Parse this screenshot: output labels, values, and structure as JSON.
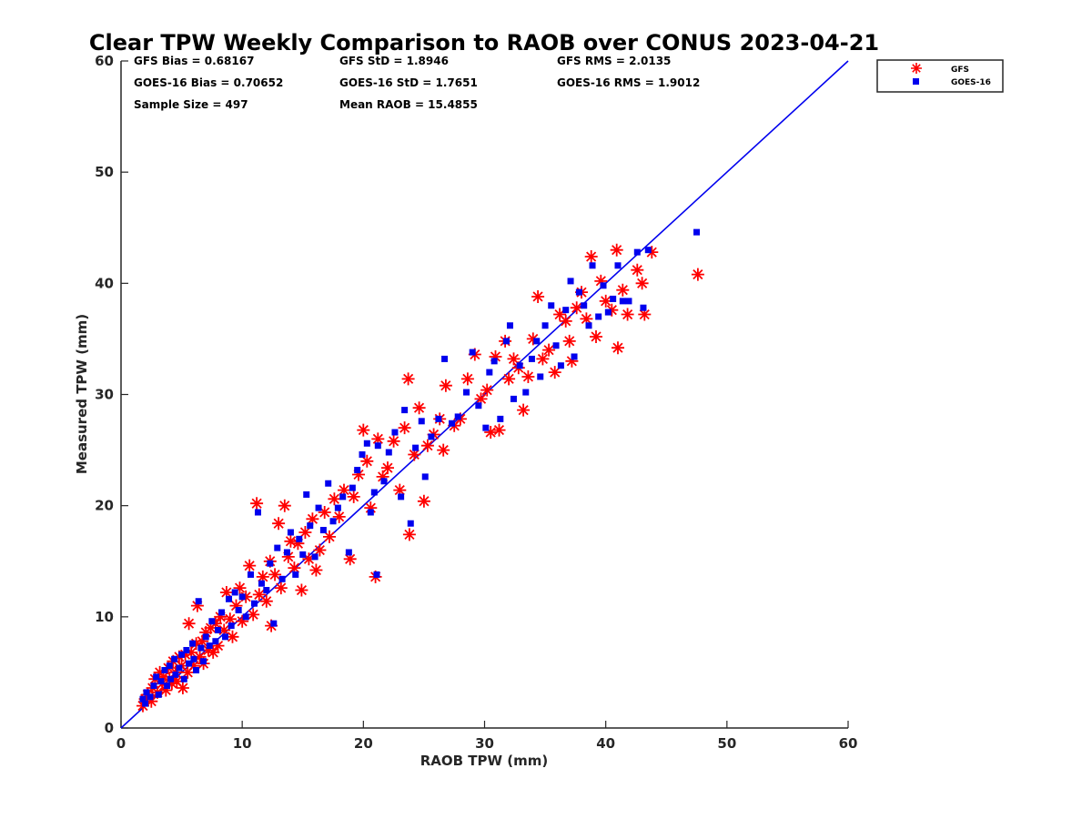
{
  "chart_data": {
    "type": "scatter",
    "title": "Clear TPW Weekly Comparison to RAOB over CONUS 2023-04-21",
    "xlabel": "RAOB TPW (mm)",
    "ylabel": "Measured TPW (mm)",
    "xlim": [
      0,
      60
    ],
    "ylim": [
      0,
      60
    ],
    "x_ticks": [
      "0",
      "10",
      "20",
      "30",
      "40",
      "50",
      "60"
    ],
    "y_ticks": [
      "0",
      "10",
      "20",
      "30",
      "40",
      "50",
      "60"
    ],
    "grid": false,
    "legend_position": "top-right",
    "reference_line": {
      "name": "1:1",
      "color": "#0000ee",
      "from": [
        0,
        0
      ],
      "to": [
        60,
        60
      ]
    },
    "stats": {
      "gfs_bias": "GFS Bias = 0.68167",
      "gfs_std": "GFS StD = 1.8946",
      "gfs_rms": "GFS RMS = 2.0135",
      "goes_bias": "GOES-16 Bias = 0.70652",
      "goes_std": "GOES-16 StD = 1.7651",
      "goes_rms": "GOES-16 RMS = 1.9012",
      "sample_size": "Sample Size = 497",
      "mean_raob": "Mean RAOB = 15.4855"
    },
    "series": [
      {
        "name": "GFS",
        "marker": "asterisk",
        "color": "#ff0000",
        "points": [
          [
            1.8,
            2.0
          ],
          [
            2.0,
            2.6
          ],
          [
            2.2,
            3.0
          ],
          [
            2.5,
            2.4
          ],
          [
            2.6,
            3.6
          ],
          [
            2.8,
            4.4
          ],
          [
            3.0,
            3.2
          ],
          [
            3.2,
            5.0
          ],
          [
            3.4,
            4.0
          ],
          [
            3.5,
            4.6
          ],
          [
            3.7,
            3.4
          ],
          [
            3.9,
            5.4
          ],
          [
            4.0,
            4.4
          ],
          [
            4.2,
            4.0
          ],
          [
            4.3,
            6.0
          ],
          [
            4.5,
            5.0
          ],
          [
            4.6,
            4.2
          ],
          [
            4.8,
            6.4
          ],
          [
            5.0,
            5.6
          ],
          [
            5.1,
            3.6
          ],
          [
            5.3,
            6.6
          ],
          [
            5.5,
            5.0
          ],
          [
            5.6,
            9.4
          ],
          [
            5.8,
            6.8
          ],
          [
            6.0,
            5.6
          ],
          [
            6.2,
            7.6
          ],
          [
            6.3,
            11.0
          ],
          [
            6.5,
            6.4
          ],
          [
            6.7,
            7.8
          ],
          [
            6.8,
            5.8
          ],
          [
            7.0,
            8.6
          ],
          [
            7.2,
            7.0
          ],
          [
            7.4,
            9.0
          ],
          [
            7.6,
            6.8
          ],
          [
            7.8,
            9.4
          ],
          [
            8.0,
            7.4
          ],
          [
            8.2,
            10.0
          ],
          [
            8.5,
            8.8
          ],
          [
            8.7,
            12.2
          ],
          [
            9.0,
            9.8
          ],
          [
            9.2,
            8.2
          ],
          [
            9.5,
            11.0
          ],
          [
            9.8,
            12.6
          ],
          [
            10.0,
            9.6
          ],
          [
            10.3,
            11.8
          ],
          [
            10.6,
            14.6
          ],
          [
            10.9,
            10.2
          ],
          [
            11.2,
            20.2
          ],
          [
            11.4,
            12.0
          ],
          [
            11.7,
            13.6
          ],
          [
            12.0,
            11.4
          ],
          [
            12.3,
            15.0
          ],
          [
            12.4,
            9.2
          ],
          [
            12.7,
            13.8
          ],
          [
            13.0,
            18.4
          ],
          [
            13.2,
            12.6
          ],
          [
            13.5,
            20.0
          ],
          [
            13.8,
            15.4
          ],
          [
            14.0,
            16.8
          ],
          [
            14.3,
            14.4
          ],
          [
            14.6,
            16.6
          ],
          [
            14.9,
            12.4
          ],
          [
            15.2,
            17.6
          ],
          [
            15.5,
            15.2
          ],
          [
            15.8,
            18.8
          ],
          [
            16.1,
            14.2
          ],
          [
            16.4,
            16.0
          ],
          [
            16.8,
            19.4
          ],
          [
            17.2,
            17.2
          ],
          [
            17.6,
            20.6
          ],
          [
            18.0,
            19.0
          ],
          [
            18.4,
            21.4
          ],
          [
            18.9,
            15.2
          ],
          [
            19.2,
            20.8
          ],
          [
            19.6,
            22.8
          ],
          [
            20.0,
            26.8
          ],
          [
            20.3,
            24.0
          ],
          [
            20.6,
            19.8
          ],
          [
            21.0,
            13.6
          ],
          [
            21.2,
            26.0
          ],
          [
            21.6,
            22.6
          ],
          [
            22.0,
            23.4
          ],
          [
            22.5,
            25.8
          ],
          [
            23.0,
            21.4
          ],
          [
            23.4,
            27.0
          ],
          [
            23.7,
            31.4
          ],
          [
            23.8,
            17.4
          ],
          [
            24.2,
            24.6
          ],
          [
            24.6,
            28.8
          ],
          [
            25.0,
            20.4
          ],
          [
            25.3,
            25.4
          ],
          [
            25.8,
            26.4
          ],
          [
            26.3,
            27.8
          ],
          [
            26.6,
            25.0
          ],
          [
            26.8,
            30.8
          ],
          [
            27.5,
            27.2
          ],
          [
            28.0,
            27.8
          ],
          [
            28.6,
            31.4
          ],
          [
            29.2,
            33.6
          ],
          [
            29.7,
            29.6
          ],
          [
            30.2,
            30.4
          ],
          [
            30.5,
            26.6
          ],
          [
            30.9,
            33.4
          ],
          [
            31.2,
            26.8
          ],
          [
            31.7,
            34.8
          ],
          [
            32.0,
            31.4
          ],
          [
            32.4,
            33.2
          ],
          [
            32.8,
            32.4
          ],
          [
            33.2,
            28.6
          ],
          [
            33.6,
            31.6
          ],
          [
            34.0,
            35.0
          ],
          [
            34.4,
            38.8
          ],
          [
            34.8,
            33.2
          ],
          [
            35.3,
            34.0
          ],
          [
            35.8,
            32.0
          ],
          [
            36.2,
            37.2
          ],
          [
            36.7,
            36.6
          ],
          [
            37.0,
            34.8
          ],
          [
            37.2,
            33.0
          ],
          [
            37.6,
            37.8
          ],
          [
            38.0,
            39.2
          ],
          [
            38.4,
            36.8
          ],
          [
            38.8,
            42.4
          ],
          [
            39.2,
            35.2
          ],
          [
            39.6,
            40.2
          ],
          [
            40.0,
            38.4
          ],
          [
            40.5,
            37.6
          ],
          [
            40.9,
            43.0
          ],
          [
            41.0,
            34.2
          ],
          [
            41.4,
            39.4
          ],
          [
            41.8,
            37.2
          ],
          [
            42.6,
            41.2
          ],
          [
            43.0,
            40.0
          ],
          [
            43.2,
            37.2
          ],
          [
            43.8,
            42.8
          ],
          [
            47.6,
            40.8
          ]
        ]
      },
      {
        "name": "GOES-16",
        "marker": "square",
        "color": "#0000ee",
        "points": [
          [
            1.8,
            2.6
          ],
          [
            2.0,
            2.2
          ],
          [
            2.1,
            3.2
          ],
          [
            2.4,
            2.8
          ],
          [
            2.7,
            3.8
          ],
          [
            2.9,
            4.6
          ],
          [
            3.1,
            3.0
          ],
          [
            3.3,
            4.2
          ],
          [
            3.6,
            5.2
          ],
          [
            3.8,
            3.8
          ],
          [
            4.0,
            5.6
          ],
          [
            4.1,
            4.4
          ],
          [
            4.4,
            6.2
          ],
          [
            4.5,
            4.8
          ],
          [
            4.8,
            5.4
          ],
          [
            5.0,
            6.6
          ],
          [
            5.2,
            4.4
          ],
          [
            5.4,
            7.0
          ],
          [
            5.6,
            5.8
          ],
          [
            5.9,
            7.6
          ],
          [
            6.0,
            6.2
          ],
          [
            6.2,
            5.2
          ],
          [
            6.4,
            11.4
          ],
          [
            6.6,
            7.2
          ],
          [
            6.8,
            6.0
          ],
          [
            7.0,
            8.2
          ],
          [
            7.3,
            7.4
          ],
          [
            7.5,
            9.6
          ],
          [
            7.8,
            7.8
          ],
          [
            8.0,
            8.8
          ],
          [
            8.3,
            10.4
          ],
          [
            8.6,
            8.2
          ],
          [
            8.9,
            11.6
          ],
          [
            9.1,
            9.2
          ],
          [
            9.4,
            12.2
          ],
          [
            9.7,
            10.6
          ],
          [
            10.0,
            11.8
          ],
          [
            10.3,
            10.0
          ],
          [
            10.7,
            13.8
          ],
          [
            11.0,
            11.2
          ],
          [
            11.3,
            19.4
          ],
          [
            11.6,
            13.0
          ],
          [
            12.0,
            12.4
          ],
          [
            12.3,
            14.8
          ],
          [
            12.6,
            9.4
          ],
          [
            12.9,
            16.2
          ],
          [
            13.3,
            13.4
          ],
          [
            13.7,
            15.8
          ],
          [
            14.0,
            17.6
          ],
          [
            14.4,
            13.8
          ],
          [
            14.7,
            17.0
          ],
          [
            15.0,
            15.6
          ],
          [
            15.3,
            21.0
          ],
          [
            15.6,
            18.2
          ],
          [
            16.0,
            15.4
          ],
          [
            16.3,
            19.8
          ],
          [
            16.7,
            17.8
          ],
          [
            17.1,
            22.0
          ],
          [
            17.5,
            18.6
          ],
          [
            17.9,
            19.8
          ],
          [
            18.3,
            20.8
          ],
          [
            18.8,
            15.8
          ],
          [
            19.1,
            21.6
          ],
          [
            19.5,
            23.2
          ],
          [
            19.9,
            24.6
          ],
          [
            20.3,
            25.6
          ],
          [
            20.6,
            19.4
          ],
          [
            20.9,
            21.2
          ],
          [
            21.1,
            13.8
          ],
          [
            21.2,
            25.4
          ],
          [
            21.7,
            22.2
          ],
          [
            22.1,
            24.8
          ],
          [
            22.6,
            26.6
          ],
          [
            23.1,
            20.8
          ],
          [
            23.4,
            28.6
          ],
          [
            23.9,
            18.4
          ],
          [
            24.3,
            25.2
          ],
          [
            24.8,
            27.6
          ],
          [
            25.1,
            22.6
          ],
          [
            25.6,
            26.2
          ],
          [
            26.2,
            27.8
          ],
          [
            26.7,
            33.2
          ],
          [
            27.3,
            27.4
          ],
          [
            27.8,
            28.0
          ],
          [
            28.5,
            30.2
          ],
          [
            29.0,
            33.8
          ],
          [
            29.5,
            29.0
          ],
          [
            30.1,
            27.0
          ],
          [
            30.4,
            32.0
          ],
          [
            30.8,
            33.0
          ],
          [
            31.3,
            27.8
          ],
          [
            31.8,
            34.8
          ],
          [
            32.1,
            36.2
          ],
          [
            32.4,
            29.6
          ],
          [
            32.9,
            32.6
          ],
          [
            33.4,
            30.2
          ],
          [
            33.9,
            33.2
          ],
          [
            34.3,
            34.8
          ],
          [
            34.6,
            31.6
          ],
          [
            35.0,
            36.2
          ],
          [
            35.5,
            38.0
          ],
          [
            35.9,
            34.4
          ],
          [
            36.3,
            32.6
          ],
          [
            36.7,
            37.6
          ],
          [
            37.1,
            40.2
          ],
          [
            37.4,
            33.4
          ],
          [
            37.8,
            39.2
          ],
          [
            38.2,
            38.0
          ],
          [
            38.6,
            36.2
          ],
          [
            38.9,
            41.6
          ],
          [
            39.4,
            37.0
          ],
          [
            39.8,
            39.8
          ],
          [
            40.2,
            37.4
          ],
          [
            40.6,
            38.6
          ],
          [
            41.0,
            41.6
          ],
          [
            41.4,
            38.4
          ],
          [
            41.9,
            38.4
          ],
          [
            42.6,
            42.8
          ],
          [
            43.1,
            37.8
          ],
          [
            43.5,
            43.0
          ],
          [
            47.5,
            44.6
          ]
        ]
      }
    ]
  }
}
